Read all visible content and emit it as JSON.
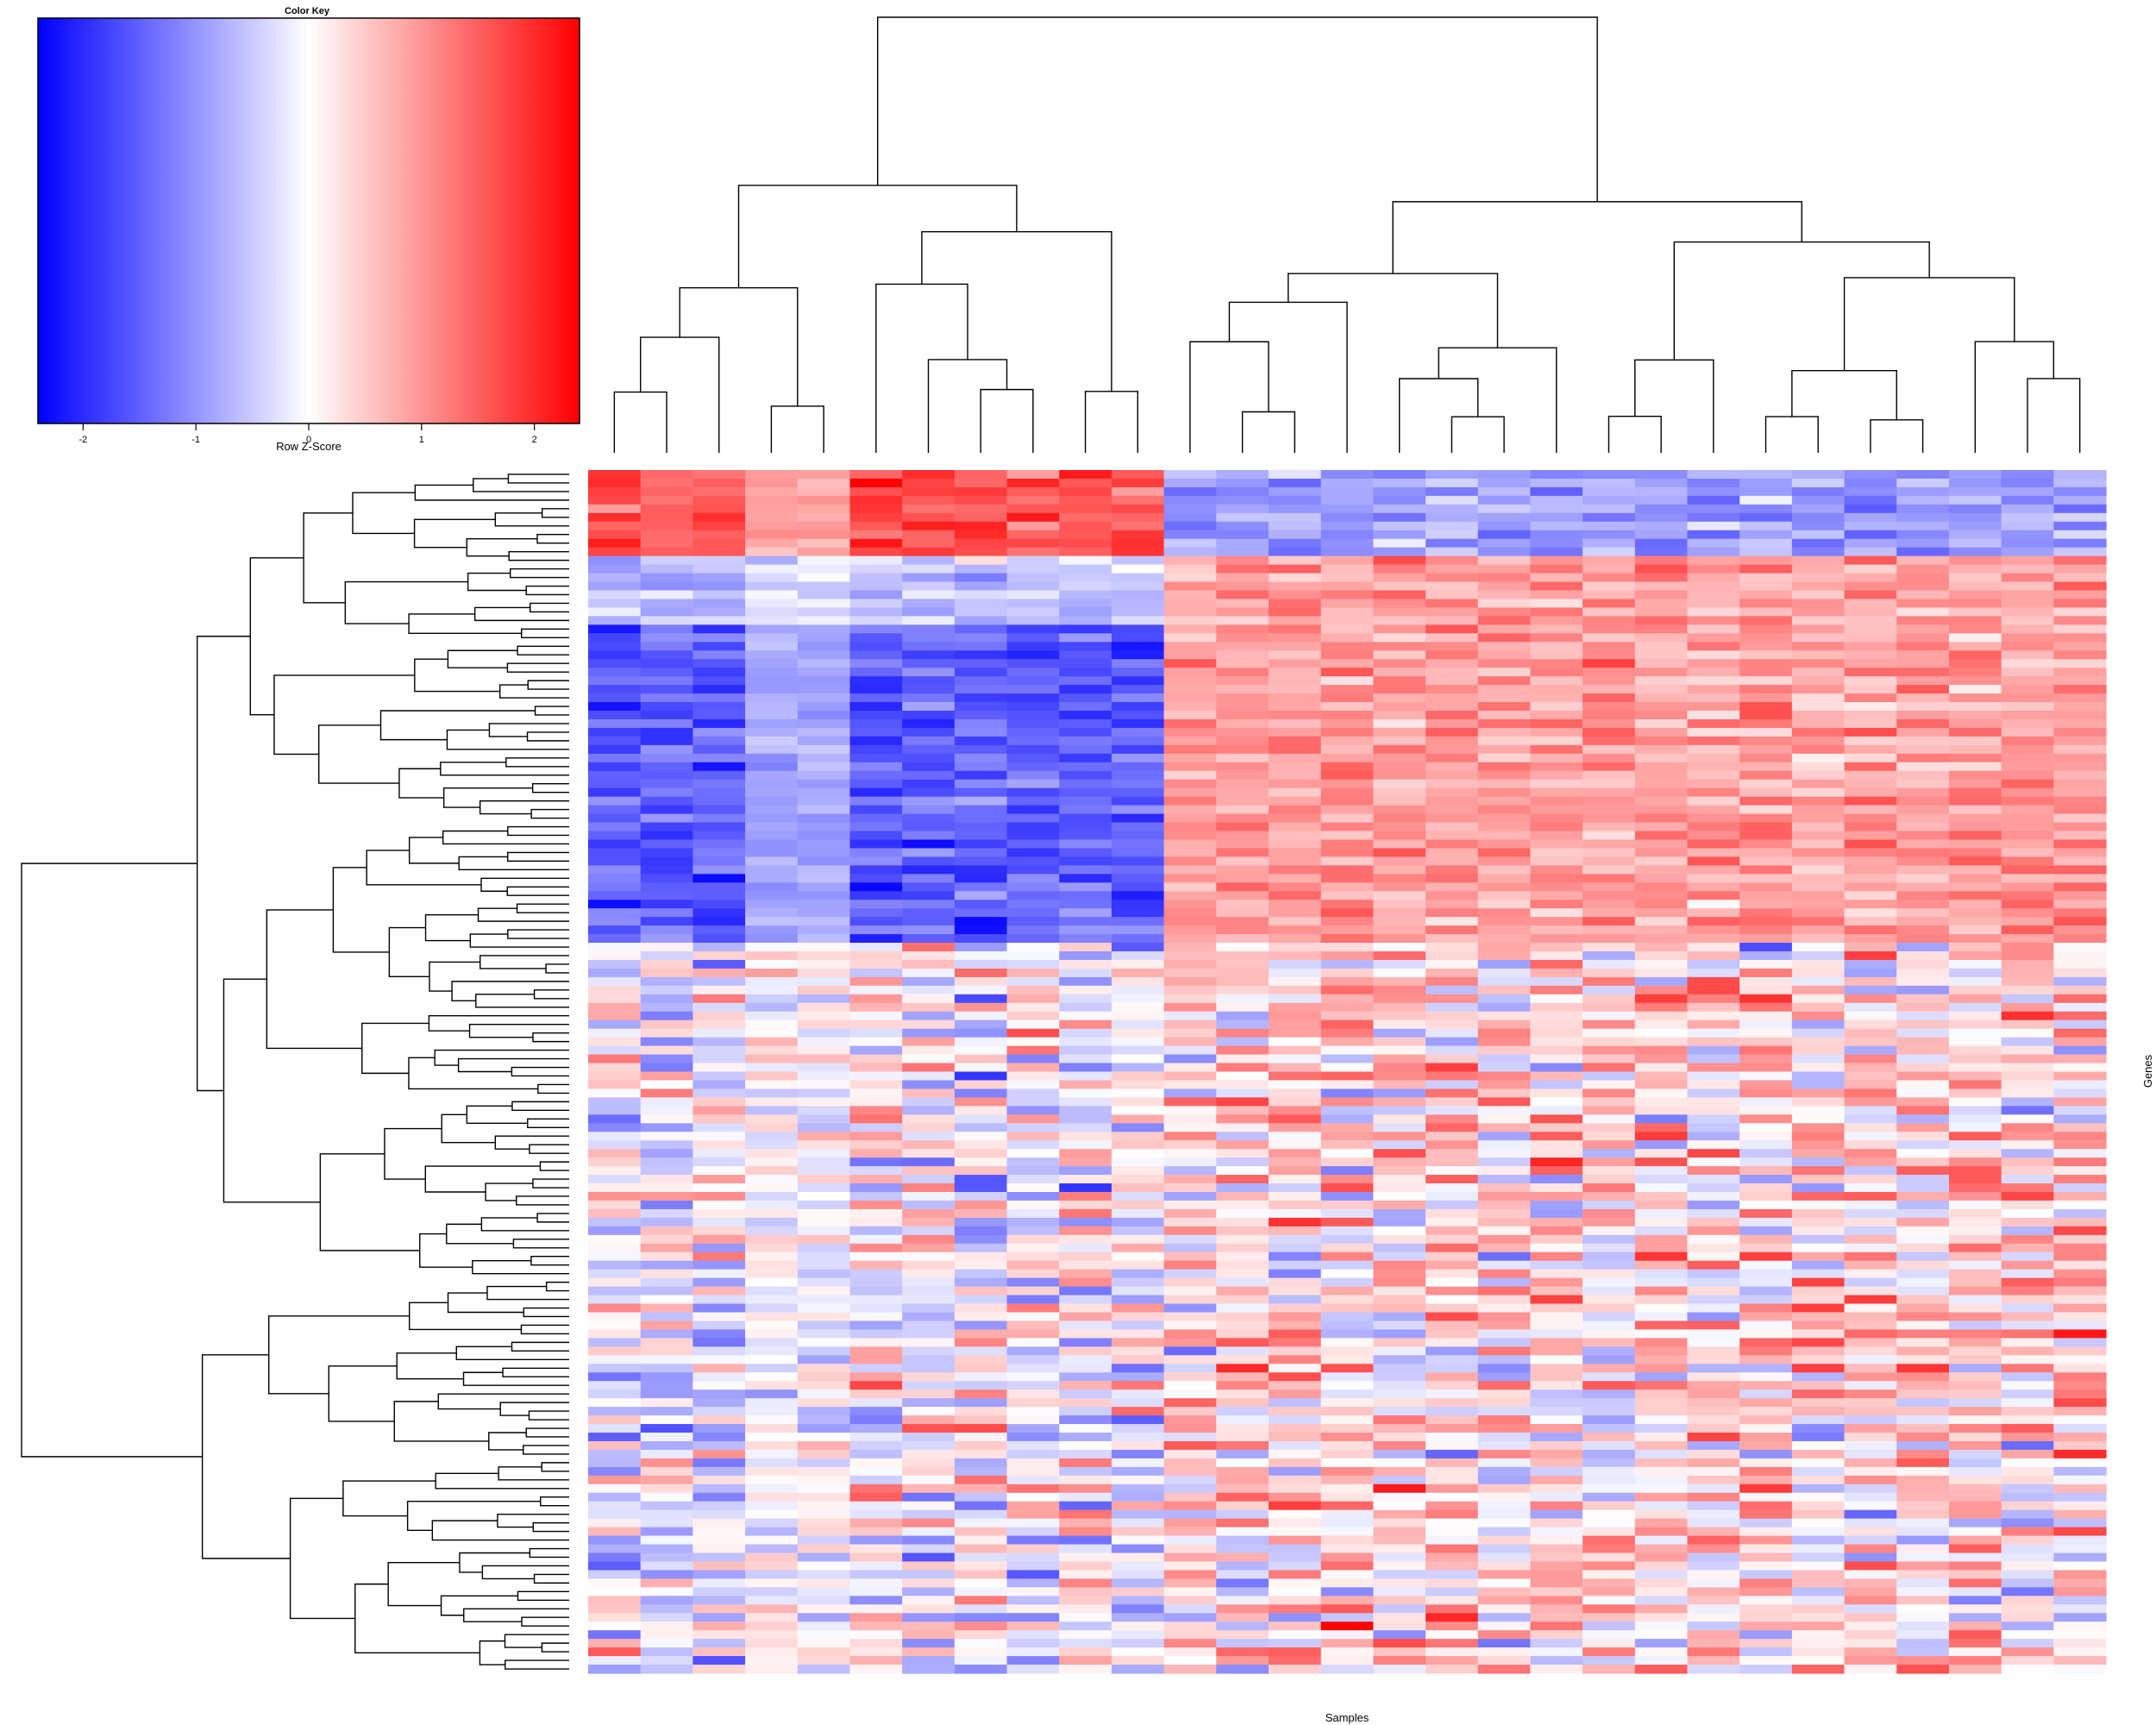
{
  "chart_data": {
    "type": "heatmap",
    "title": "",
    "xlabel": "Samples",
    "ylabel": "Genes",
    "n_samples": 29,
    "n_genes": 140,
    "row_dendrogram": true,
    "column_dendrogram": true,
    "color_key": {
      "title": "Color Key",
      "label": "Row Z-Score",
      "range": [
        -2.4,
        2.4
      ],
      "ticks": [
        -2,
        -1,
        0,
        1,
        2
      ],
      "tick_labels": [
        "-2",
        "-1",
        "0",
        "1",
        "2"
      ],
      "colors": {
        "low": "#0000ff",
        "mid": "#ffffff",
        "high": "#ff0000"
      }
    },
    "column_blocks": [
      {
        "name": "left group",
        "columns": [
          0,
          11
        ],
        "pattern": "red in top rows, blue in upper-middle block"
      },
      {
        "name": "right group",
        "columns": [
          11,
          29
        ],
        "pattern": "blue in top rows, red in upper-middle block"
      }
    ],
    "row_blocks": [
      {
        "rows": [
          0,
          10
        ],
        "left_group_mean": 1.6,
        "right_group_mean": -0.9
      },
      {
        "rows": [
          10,
          18
        ],
        "left_group_mean": -0.6,
        "right_group_mean": 0.9
      },
      {
        "rows": [
          18,
          55
        ],
        "left_group_mean": -1.5,
        "right_group_mean": 0.9
      },
      {
        "rows": [
          55,
          140
        ],
        "left_group_mean": -0.1,
        "right_group_mean": 0.35
      }
    ]
  }
}
